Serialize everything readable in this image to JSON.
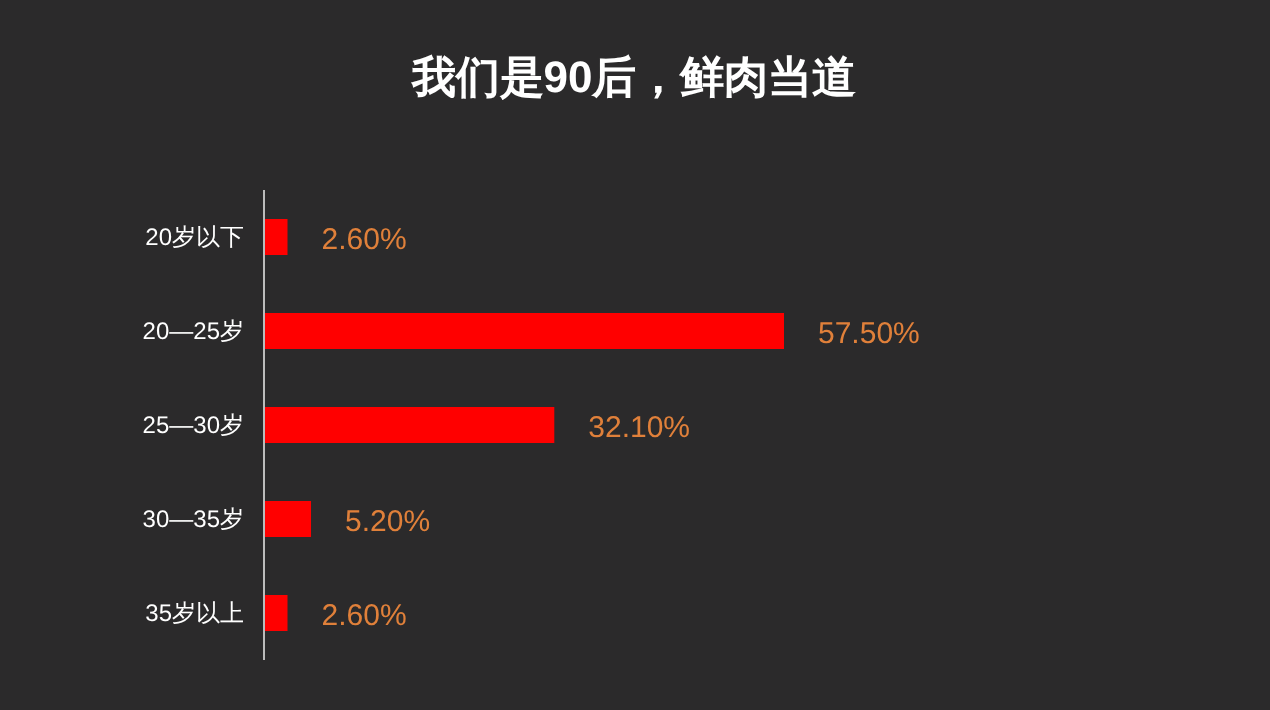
{
  "chart_data": {
    "type": "bar",
    "orientation": "horizontal",
    "title": "我们是90后，鲜肉当道",
    "categories": [
      "20岁以下",
      "20—25岁",
      "25—30岁",
      "30—35岁",
      "35岁以上"
    ],
    "values": [
      2.6,
      57.5,
      32.1,
      5.2,
      2.6
    ],
    "value_labels": [
      "2.60%",
      "57.50%",
      "32.10%",
      "5.20%",
      "2.60%"
    ],
    "color": "#ff0000"
  }
}
